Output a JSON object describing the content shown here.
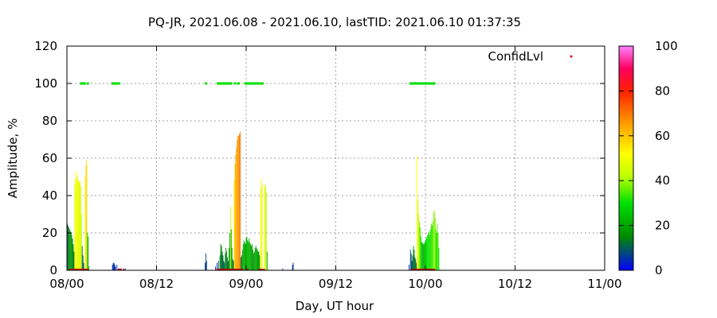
{
  "chart_data": {
    "type": "bar",
    "title": "PQ-JR, 2021.06.08 - 2021.06.10, lastTID: 2021.06.10 01:37:35",
    "xlabel": "Day, UT hour",
    "ylabel": "Amplitude, %",
    "xlim": [
      0,
      72
    ],
    "ylim": [
      0,
      120
    ],
    "x_ticks": [
      {
        "x": 0,
        "label": "08/00"
      },
      {
        "x": 12,
        "label": "08/12"
      },
      {
        "x": 24,
        "label": "09/00"
      },
      {
        "x": 36,
        "label": "09/12"
      },
      {
        "x": 48,
        "label": "10/00"
      },
      {
        "x": 60,
        "label": "10/12"
      },
      {
        "x": 72,
        "label": "11/00"
      }
    ],
    "y_ticks": [
      0,
      20,
      40,
      60,
      80,
      100,
      120
    ],
    "grid": true,
    "legend": {
      "label": "ConfidLvl",
      "placement": "top-right",
      "marker_color": "#dd0000"
    },
    "colorbar": {
      "min": 0,
      "max": 100,
      "ticks": [
        0,
        20,
        40,
        60,
        80,
        100
      ],
      "palette": [
        "#0000ff",
        "#00a000",
        "#00ff00",
        "#ffff00",
        "#ffa000",
        "#ff0000",
        "#ff00a0",
        "#ff80ff"
      ]
    },
    "series": [
      {
        "name": "Amplitude",
        "points": [
          [
            0.05,
            25,
            10
          ],
          [
            0.15,
            24,
            12
          ],
          [
            0.25,
            23,
            14
          ],
          [
            0.35,
            22,
            15
          ],
          [
            0.45,
            21,
            16
          ],
          [
            0.55,
            20,
            17
          ],
          [
            0.65,
            19,
            18
          ],
          [
            0.75,
            17,
            18
          ],
          [
            0.85,
            14,
            14
          ],
          [
            0.95,
            10,
            10
          ],
          [
            1.05,
            46,
            48
          ],
          [
            1.15,
            49,
            50
          ],
          [
            1.25,
            53,
            52
          ],
          [
            1.35,
            51,
            50
          ],
          [
            1.45,
            49,
            48
          ],
          [
            1.55,
            48,
            48
          ],
          [
            1.65,
            47,
            46
          ],
          [
            1.75,
            48,
            48
          ],
          [
            1.85,
            45,
            45
          ],
          [
            1.95,
            30,
            42
          ],
          [
            2.05,
            13,
            12
          ],
          [
            2.15,
            8,
            10
          ],
          [
            2.25,
            4,
            6
          ],
          [
            2.45,
            50,
            52
          ],
          [
            2.55,
            56,
            56
          ],
          [
            2.65,
            59,
            58
          ],
          [
            2.75,
            20,
            28
          ],
          [
            2.85,
            18,
            22
          ],
          [
            2.95,
            2,
            20
          ],
          [
            6.1,
            3,
            5
          ],
          [
            6.2,
            4,
            6
          ],
          [
            6.3,
            4,
            5
          ],
          [
            6.4,
            3,
            4
          ],
          [
            6.5,
            2,
            4
          ],
          [
            6.7,
            3,
            6
          ],
          [
            7.0,
            1,
            4
          ],
          [
            7.3,
            1,
            3
          ],
          [
            7.8,
            1,
            2
          ],
          [
            18.5,
            4,
            6
          ],
          [
            18.6,
            9,
            8
          ],
          [
            18.7,
            5,
            6
          ],
          [
            19.9,
            2,
            4
          ],
          [
            20.1,
            4,
            6
          ],
          [
            20.3,
            5,
            8
          ],
          [
            20.5,
            8,
            12
          ],
          [
            20.6,
            14,
            15
          ],
          [
            20.7,
            13,
            14
          ],
          [
            20.8,
            10,
            12
          ],
          [
            20.9,
            8,
            10
          ],
          [
            21.0,
            5,
            8
          ],
          [
            21.1,
            4,
            10
          ],
          [
            21.2,
            9,
            15
          ],
          [
            21.3,
            12,
            16
          ],
          [
            21.4,
            10,
            14
          ],
          [
            21.5,
            7,
            12
          ],
          [
            21.6,
            5,
            8
          ],
          [
            21.7,
            12,
            20
          ],
          [
            21.8,
            20,
            18
          ],
          [
            21.9,
            34,
            44
          ],
          [
            22.0,
            22,
            20
          ],
          [
            22.1,
            12,
            18
          ],
          [
            22.2,
            6,
            12
          ],
          [
            22.3,
            5,
            10
          ],
          [
            22.4,
            48,
            55
          ],
          [
            22.5,
            57,
            60
          ],
          [
            22.6,
            62,
            63
          ],
          [
            22.7,
            66,
            64
          ],
          [
            22.8,
            70,
            65
          ],
          [
            22.9,
            72,
            66
          ],
          [
            23.0,
            72,
            67
          ],
          [
            23.1,
            73,
            68
          ],
          [
            23.2,
            74,
            70
          ],
          [
            23.3,
            7,
            12
          ],
          [
            23.4,
            8,
            14
          ],
          [
            23.5,
            11,
            18
          ],
          [
            23.6,
            14,
            20
          ],
          [
            23.7,
            16,
            22
          ],
          [
            23.8,
            15,
            20
          ],
          [
            23.9,
            14,
            18
          ],
          [
            24.0,
            17,
            22
          ],
          [
            24.1,
            18,
            24
          ],
          [
            24.2,
            16,
            22
          ],
          [
            24.3,
            15,
            20
          ],
          [
            24.4,
            17,
            22
          ],
          [
            24.5,
            15,
            21
          ],
          [
            24.6,
            14,
            20
          ],
          [
            24.7,
            13,
            19
          ],
          [
            24.8,
            14,
            20
          ],
          [
            24.9,
            11,
            18
          ],
          [
            25.0,
            9,
            16
          ],
          [
            25.1,
            10,
            18
          ],
          [
            25.2,
            12,
            19
          ],
          [
            25.3,
            13,
            20
          ],
          [
            25.4,
            12,
            20
          ],
          [
            25.5,
            11,
            19
          ],
          [
            25.6,
            10,
            18
          ],
          [
            25.7,
            10,
            18
          ],
          [
            25.8,
            8,
            16
          ],
          [
            25.95,
            44,
            50
          ],
          [
            26.05,
            49,
            52
          ],
          [
            26.15,
            46,
            50
          ],
          [
            26.5,
            45,
            44
          ],
          [
            26.6,
            46,
            45
          ],
          [
            26.7,
            42,
            42
          ],
          [
            26.8,
            10,
            18
          ],
          [
            28.9,
            1,
            4
          ],
          [
            30.2,
            3,
            6
          ],
          [
            30.3,
            4,
            5
          ],
          [
            45.8,
            3,
            5
          ],
          [
            46.0,
            11,
            8
          ],
          [
            46.1,
            9,
            8
          ],
          [
            46.2,
            5,
            6
          ],
          [
            46.3,
            8,
            10
          ],
          [
            46.4,
            13,
            16
          ],
          [
            46.5,
            11,
            15
          ],
          [
            46.6,
            7,
            12
          ],
          [
            46.7,
            6,
            10
          ],
          [
            46.8,
            4,
            8
          ],
          [
            46.9,
            61,
            52
          ],
          [
            47.0,
            38,
            45
          ],
          [
            47.1,
            30,
            42
          ],
          [
            47.2,
            26,
            38
          ],
          [
            47.3,
            23,
            34
          ],
          [
            47.4,
            18,
            28
          ],
          [
            47.5,
            15,
            24
          ],
          [
            47.6,
            15,
            22
          ],
          [
            47.7,
            14,
            20
          ],
          [
            47.8,
            14,
            22
          ],
          [
            47.9,
            15,
            25
          ],
          [
            48.0,
            16,
            28
          ],
          [
            48.1,
            17,
            28
          ],
          [
            48.2,
            18,
            30
          ],
          [
            48.3,
            19,
            30
          ],
          [
            48.4,
            20,
            30
          ],
          [
            48.5,
            21,
            32
          ],
          [
            48.6,
            19,
            30
          ],
          [
            48.7,
            22,
            32
          ],
          [
            48.8,
            25,
            34
          ],
          [
            48.9,
            24,
            33
          ],
          [
            49.0,
            26,
            35
          ],
          [
            49.1,
            31,
            38
          ],
          [
            49.2,
            32,
            40
          ],
          [
            49.3,
            28,
            36
          ],
          [
            49.4,
            22,
            32
          ],
          [
            49.5,
            20,
            32
          ],
          [
            49.6,
            25,
            36
          ],
          [
            49.7,
            20,
            34
          ],
          [
            49.8,
            12,
            30
          ]
        ]
      },
      {
        "name": "ConfidLvl",
        "points": [
          [
            1.9,
            100
          ],
          [
            2.0,
            100
          ],
          [
            2.1,
            100
          ],
          [
            2.3,
            100
          ],
          [
            2.4,
            100
          ],
          [
            2.8,
            100
          ],
          [
            6.1,
            100
          ],
          [
            6.2,
            100
          ],
          [
            6.3,
            100
          ],
          [
            6.4,
            100
          ],
          [
            6.5,
            100
          ],
          [
            6.6,
            100
          ],
          [
            6.7,
            100
          ],
          [
            7.0,
            100
          ],
          [
            18.6,
            100
          ],
          [
            20.2,
            100
          ],
          [
            20.4,
            100
          ],
          [
            20.5,
            100
          ],
          [
            20.6,
            100
          ],
          [
            20.7,
            100
          ],
          [
            20.8,
            100
          ],
          [
            20.9,
            100
          ],
          [
            21.0,
            100
          ],
          [
            21.1,
            100
          ],
          [
            21.2,
            100
          ],
          [
            21.3,
            100
          ],
          [
            21.4,
            100
          ],
          [
            21.5,
            100
          ],
          [
            21.6,
            100
          ],
          [
            21.7,
            100
          ],
          [
            21.8,
            100
          ],
          [
            22.0,
            100
          ],
          [
            22.5,
            100
          ],
          [
            22.9,
            100
          ],
          [
            23.0,
            100
          ],
          [
            23.9,
            100
          ],
          [
            24.0,
            100
          ],
          [
            24.1,
            100
          ],
          [
            24.2,
            100
          ],
          [
            24.3,
            100
          ],
          [
            24.4,
            100
          ],
          [
            24.5,
            100
          ],
          [
            24.6,
            100
          ],
          [
            24.7,
            100
          ],
          [
            24.8,
            100
          ],
          [
            24.9,
            100
          ],
          [
            25.0,
            100
          ],
          [
            25.1,
            100
          ],
          [
            25.3,
            100
          ],
          [
            25.5,
            100
          ],
          [
            25.7,
            100
          ],
          [
            26.0,
            100
          ],
          [
            26.2,
            100
          ],
          [
            46.0,
            100
          ],
          [
            46.2,
            100
          ],
          [
            46.4,
            100
          ],
          [
            46.6,
            100
          ],
          [
            46.8,
            100
          ],
          [
            47.0,
            100
          ],
          [
            47.2,
            100
          ],
          [
            47.4,
            100
          ],
          [
            47.6,
            100
          ],
          [
            47.8,
            100
          ],
          [
            48.0,
            100
          ],
          [
            48.2,
            100
          ],
          [
            48.4,
            100
          ],
          [
            48.6,
            100
          ],
          [
            48.8,
            100
          ],
          [
            49.0,
            100
          ],
          [
            49.2,
            100
          ]
        ]
      }
    ],
    "baseline_red_segments": [
      [
        0.3,
        2.9
      ],
      [
        6.8,
        7.3
      ],
      [
        7.5,
        7.7
      ],
      [
        20.0,
        23.6
      ],
      [
        24.0,
        24.3
      ],
      [
        25.6,
        26.5
      ],
      [
        46.1,
        49.3
      ]
    ]
  }
}
